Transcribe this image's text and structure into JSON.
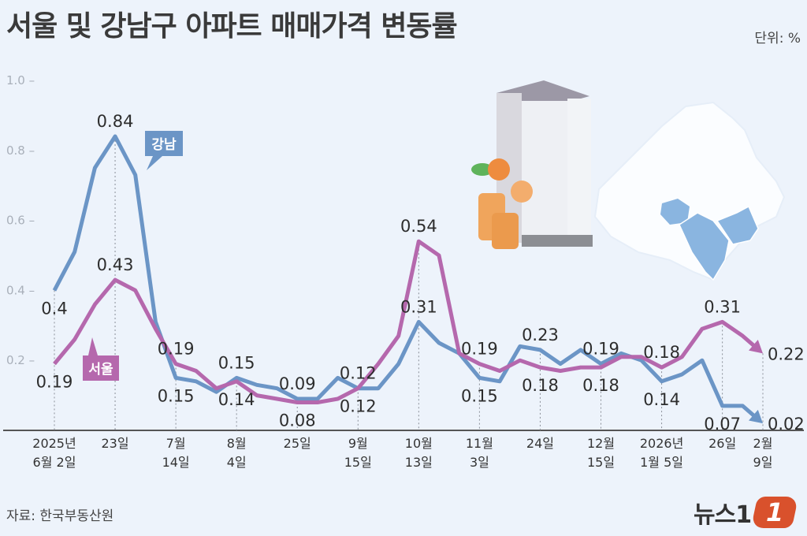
{
  "header": {
    "title": "서울 및 강남구 아파트 매매가격 변동률",
    "unit": "단위: %"
  },
  "footer": {
    "source": "자료: 한국부동산원",
    "logo": "뉴스1"
  },
  "colors": {
    "gangnam": "#6b95c6",
    "seoul": "#b568ad",
    "background": "#edf3fb",
    "logo": "#d9512c"
  },
  "chart_data": {
    "type": "line",
    "title": "서울 및 강남구 아파트 매매가격 변동률",
    "ylabel": "",
    "ylim": [
      0,
      1.0
    ],
    "yticks": [
      "0.2",
      "0.4",
      "0.6",
      "0.8",
      "1.0"
    ],
    "grid": false,
    "x": [
      "2025-06-02",
      "2025-06-09",
      "2025-06-16",
      "2025-06-23",
      "2025-06-30",
      "2025-07-07",
      "2025-07-14",
      "2025-07-21",
      "2025-07-28",
      "2025-08-04",
      "2025-08-11",
      "2025-08-18",
      "2025-08-25",
      "2025-09-01",
      "2025-09-08",
      "2025-09-15",
      "2025-09-22",
      "2025-09-29",
      "2025-10-13",
      "2025-10-20",
      "2025-10-27",
      "2025-11-03",
      "2025-11-10",
      "2025-11-17",
      "2025-11-24",
      "2025-12-01",
      "2025-12-08",
      "2025-12-15",
      "2025-12-22",
      "2025-12-29",
      "2026-01-05",
      "2026-01-12",
      "2026-01-19",
      "2026-01-26",
      "2026-02-02",
      "2026-02-09"
    ],
    "xtick_labels": [
      {
        "index": 0,
        "lines": [
          "2025년",
          "6월 2일"
        ]
      },
      {
        "index": 3,
        "lines": [
          "23일",
          ""
        ]
      },
      {
        "index": 6,
        "lines": [
          "7월",
          "14일"
        ]
      },
      {
        "index": 9,
        "lines": [
          "8월",
          "4일"
        ]
      },
      {
        "index": 12,
        "lines": [
          "25일",
          ""
        ]
      },
      {
        "index": 15,
        "lines": [
          "9월",
          "15일"
        ]
      },
      {
        "index": 18,
        "lines": [
          "10월",
          "13일"
        ]
      },
      {
        "index": 21,
        "lines": [
          "11월",
          "3일"
        ]
      },
      {
        "index": 24,
        "lines": [
          "24일",
          ""
        ]
      },
      {
        "index": 27,
        "lines": [
          "12월",
          "15일"
        ]
      },
      {
        "index": 30,
        "lines": [
          "2026년",
          "1월 5일"
        ]
      },
      {
        "index": 33,
        "lines": [
          "26일",
          ""
        ]
      },
      {
        "index": 35,
        "lines": [
          "2월",
          "9일"
        ]
      }
    ],
    "series": [
      {
        "name": "강남",
        "color": "#6b95c6",
        "values": [
          0.4,
          0.51,
          0.75,
          0.84,
          0.73,
          0.31,
          0.15,
          0.14,
          0.11,
          0.15,
          0.13,
          0.12,
          0.09,
          0.09,
          0.15,
          0.12,
          0.12,
          0.19,
          0.31,
          0.25,
          0.22,
          0.15,
          0.14,
          0.24,
          0.23,
          0.19,
          0.23,
          0.19,
          0.22,
          0.2,
          0.14,
          0.16,
          0.2,
          0.07,
          0.07,
          0.02
        ],
        "labels": [
          {
            "index": 0,
            "text": "0.4",
            "pos": "below"
          },
          {
            "index": 3,
            "text": "0.84",
            "pos": "above"
          },
          {
            "index": 6,
            "text": "0.15",
            "pos": "below"
          },
          {
            "index": 9,
            "text": "0.15",
            "pos": "above"
          },
          {
            "index": 12,
            "text": "0.09",
            "pos": "above"
          },
          {
            "index": 15,
            "text": "0.12",
            "pos": "below"
          },
          {
            "index": 18,
            "text": "0.31",
            "pos": "above"
          },
          {
            "index": 21,
            "text": "0.15",
            "pos": "below"
          },
          {
            "index": 24,
            "text": "0.23",
            "pos": "above"
          },
          {
            "index": 27,
            "text": "0.19",
            "pos": "above"
          },
          {
            "index": 30,
            "text": "0.14",
            "pos": "below"
          },
          {
            "index": 33,
            "text": "0.07",
            "pos": "below"
          },
          {
            "index": 35,
            "text": "0.02",
            "pos": "right"
          }
        ]
      },
      {
        "name": "서울",
        "color": "#b568ad",
        "values": [
          0.19,
          0.26,
          0.36,
          0.43,
          0.4,
          0.29,
          0.19,
          0.17,
          0.12,
          0.14,
          0.1,
          0.09,
          0.08,
          0.08,
          0.09,
          0.12,
          0.19,
          0.27,
          0.54,
          0.5,
          0.22,
          0.19,
          0.17,
          0.2,
          0.18,
          0.17,
          0.18,
          0.18,
          0.21,
          0.21,
          0.18,
          0.21,
          0.29,
          0.31,
          0.27,
          0.22
        ],
        "labels": [
          {
            "index": 0,
            "text": "0.19",
            "pos": "below"
          },
          {
            "index": 3,
            "text": "0.43",
            "pos": "above"
          },
          {
            "index": 6,
            "text": "0.19",
            "pos": "above"
          },
          {
            "index": 9,
            "text": "0.14",
            "pos": "below"
          },
          {
            "index": 12,
            "text": "0.08",
            "pos": "below"
          },
          {
            "index": 15,
            "text": "0.12",
            "pos": "above"
          },
          {
            "index": 18,
            "text": "0.54",
            "pos": "above"
          },
          {
            "index": 21,
            "text": "0.19",
            "pos": "above"
          },
          {
            "index": 24,
            "text": "0.18",
            "pos": "below"
          },
          {
            "index": 27,
            "text": "0.18",
            "pos": "below"
          },
          {
            "index": 30,
            "text": "0.18",
            "pos": "above"
          },
          {
            "index": 33,
            "text": "0.31",
            "pos": "above"
          },
          {
            "index": 35,
            "text": "0.22",
            "pos": "right"
          }
        ]
      }
    ]
  }
}
